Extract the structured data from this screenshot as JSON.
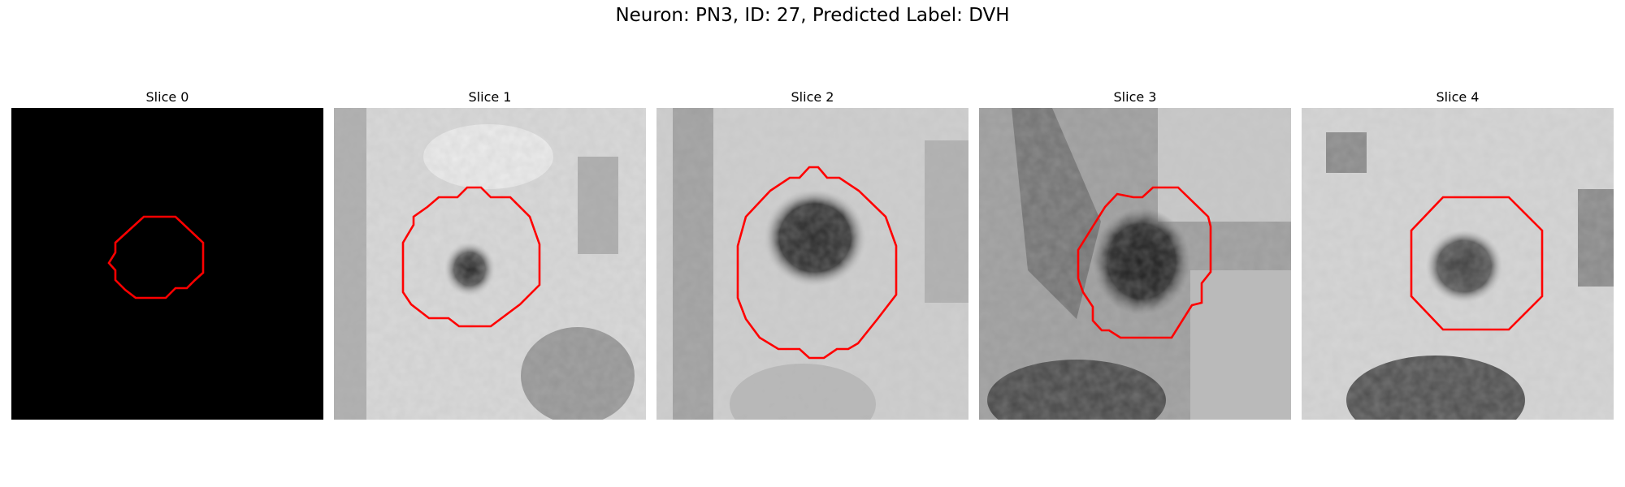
{
  "figure": {
    "title": "Neuron: PN3, ID: 27, Predicted Label: DVH"
  },
  "panels": [
    {
      "title": "Slice 0",
      "image": "blank-black-slice"
    },
    {
      "title": "Slice 1",
      "image": "grayscale-microscopy-slice"
    },
    {
      "title": "Slice 2",
      "image": "grayscale-microscopy-slice"
    },
    {
      "title": "Slice 3",
      "image": "grayscale-microscopy-slice"
    },
    {
      "title": "Slice 4",
      "image": "grayscale-microscopy-slice"
    }
  ],
  "colors": {
    "background": "#ffffff",
    "contour": "#ff0000",
    "slice0_fill": "#000000"
  }
}
